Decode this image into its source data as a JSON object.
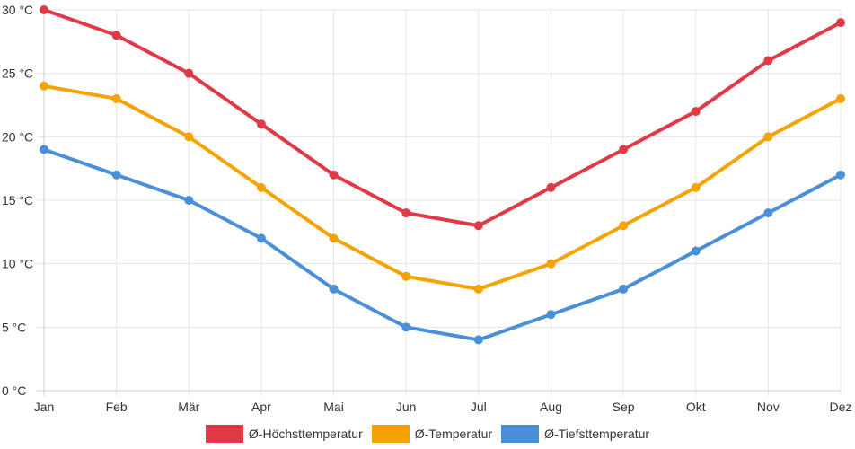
{
  "chart_data": {
    "type": "line",
    "categories": [
      "Jan",
      "Feb",
      "Mär",
      "Apr",
      "Mai",
      "Jun",
      "Jul",
      "Aug",
      "Sep",
      "Okt",
      "Nov",
      "Dez"
    ],
    "ylim": [
      0,
      30
    ],
    "yticks": [
      0,
      5,
      10,
      15,
      20,
      25,
      30
    ],
    "ytick_labels": [
      "0 °C",
      "5 °C",
      "10 °C",
      "15 °C",
      "20 °C",
      "25 °C",
      "30 °C"
    ],
    "grid": true,
    "legend_position": "bottom",
    "series": [
      {
        "name": "Ø-Höchsttemperatur",
        "color": "#e03a47",
        "values": [
          30,
          28,
          25,
          21,
          17,
          14,
          13,
          16,
          19,
          22,
          26,
          29
        ]
      },
      {
        "name": "Ø-Temperatur",
        "color": "#f5a300",
        "values": [
          24,
          23,
          20,
          16,
          12,
          9,
          8,
          10,
          13,
          16,
          20,
          23
        ]
      },
      {
        "name": "Ø-Tiefsttemperatur",
        "color": "#4a90d9",
        "values": [
          19,
          17,
          15,
          12,
          8,
          5,
          4,
          6,
          8,
          11,
          14,
          17
        ]
      }
    ]
  }
}
